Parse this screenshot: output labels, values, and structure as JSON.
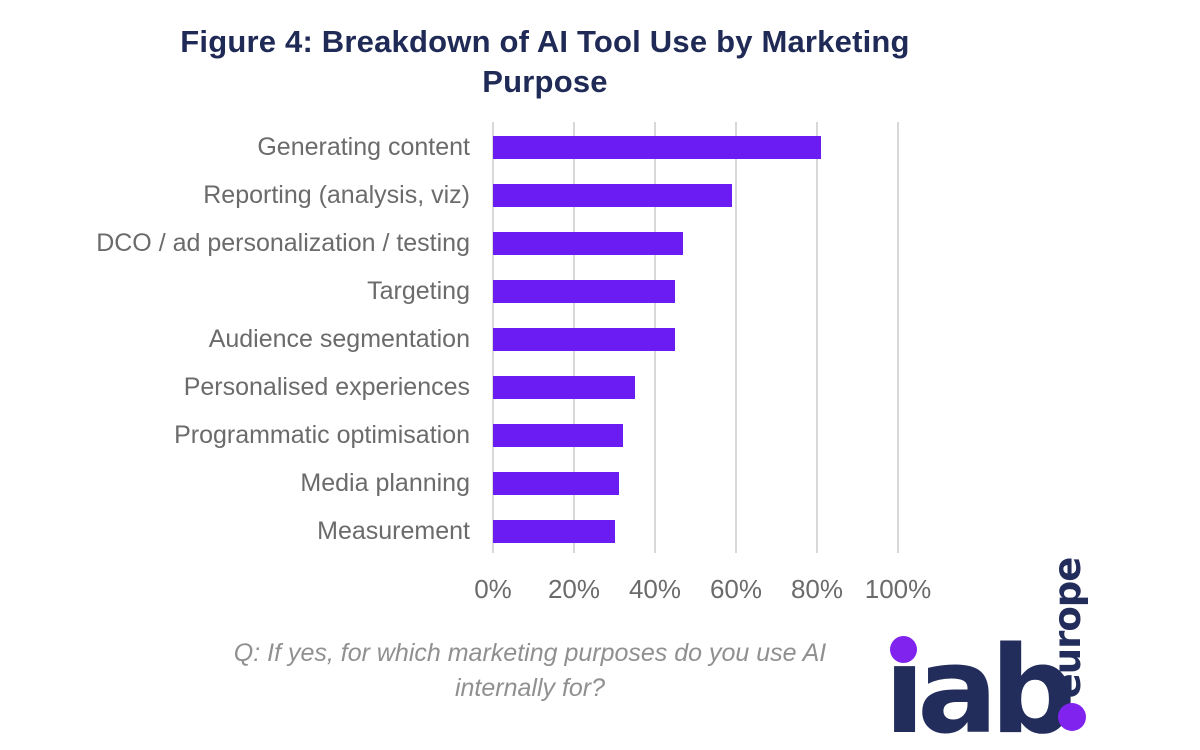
{
  "page": {
    "title_lines": [
      "Figure 4: Breakdown of AI Tool Use by Marketing",
      "Purpose"
    ],
    "caption_lines": [
      "Q: If yes, for which marketing purposes do you use AI",
      "internally for?"
    ]
  },
  "logo": {
    "wordmark": "iab",
    "wordmark_display": "ıab",
    "suffix": "europe",
    "navy": "#232D5B",
    "purple": "#8023EE"
  },
  "colors": {
    "bar": "#6A1CF2",
    "title_navy": "#202A56",
    "label_gray": "#6B6B6B",
    "caption_gray": "#909090",
    "gridline": "#D8D8D8",
    "background": "#FFFFFF"
  },
  "chart_data": {
    "type": "bar",
    "orientation": "horizontal",
    "title": "Figure 4: Breakdown of AI Tool Use by Marketing Purpose",
    "categories": [
      "Generating content",
      "Reporting (analysis, viz)",
      "DCO / ad personalization / testing",
      "Targeting",
      "Audience segmentation",
      "Personalised experiences",
      "Programmatic optimisation",
      "Media planning",
      "Measurement"
    ],
    "values": [
      81,
      59,
      47,
      45,
      45,
      35,
      32,
      31,
      30
    ],
    "unit": "%",
    "x_ticks": [
      "0%",
      "20%",
      "40%",
      "60%",
      "80%",
      "100%"
    ],
    "xlim": [
      0,
      100
    ],
    "grid": "vertical-gridlines-only",
    "legend": "none",
    "caption": "Q: If yes, for which marketing purposes do you use AI internally for?"
  }
}
